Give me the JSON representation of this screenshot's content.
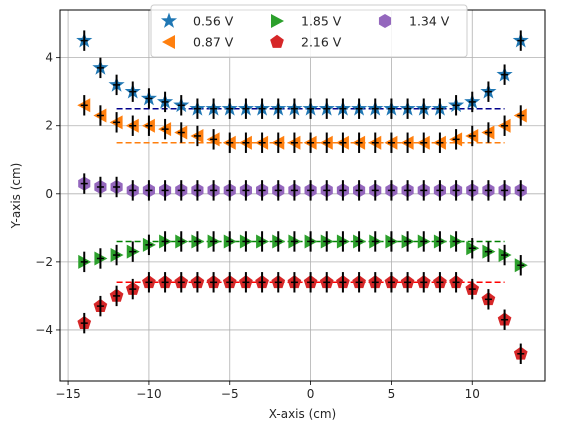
{
  "chart_data": {
    "type": "scatter",
    "title": "",
    "xlabel": "X-axis (cm)",
    "ylabel": "Y-axis (cm)",
    "xlim": [
      -15.5,
      14.5
    ],
    "ylim": [
      -5.5,
      5.4
    ],
    "xticks": [
      -15,
      -10,
      -5,
      0,
      5,
      10
    ],
    "yticks": [
      -4,
      -2,
      0,
      2,
      4
    ],
    "grid": true,
    "legend": {
      "placement": "top-center",
      "columns": 3
    },
    "x": [
      -14,
      -13,
      -12,
      -11,
      -10,
      -9,
      -8,
      -7,
      -6,
      -5,
      -4,
      -3,
      -2,
      -1,
      0,
      1,
      2,
      3,
      4,
      5,
      6,
      7,
      8,
      9,
      10,
      11,
      12,
      13
    ],
    "error_bar_color": "#000000",
    "series": [
      {
        "name": "0.56 V",
        "marker": "star",
        "color": "#1f77b4",
        "y": [
          4.5,
          3.7,
          3.2,
          3.0,
          2.8,
          2.7,
          2.6,
          2.5,
          2.5,
          2.5,
          2.5,
          2.5,
          2.5,
          2.5,
          2.5,
          2.5,
          2.5,
          2.5,
          2.5,
          2.5,
          2.5,
          2.5,
          2.5,
          2.6,
          2.7,
          3.0,
          3.5,
          4.5
        ],
        "yerr": 0.3,
        "reference_line": {
          "y": 2.5,
          "x_range": [
            -12,
            12
          ],
          "color": "#00008b"
        }
      },
      {
        "name": "0.87 V",
        "marker": "triangle-left",
        "color": "#ff7f0e",
        "y": [
          2.6,
          2.3,
          2.1,
          2.0,
          2.0,
          1.9,
          1.8,
          1.7,
          1.6,
          1.5,
          1.5,
          1.5,
          1.5,
          1.5,
          1.5,
          1.5,
          1.5,
          1.5,
          1.5,
          1.5,
          1.5,
          1.5,
          1.5,
          1.6,
          1.7,
          1.8,
          2.0,
          2.3
        ],
        "yerr": 0.3,
        "reference_line": {
          "y": 1.5,
          "x_range": [
            -12,
            12
          ],
          "color": "#ff7f0e"
        }
      },
      {
        "name": "1.34 V",
        "marker": "hexagon",
        "color": "#9467bd",
        "y": [
          0.3,
          0.2,
          0.2,
          0.1,
          0.1,
          0.1,
          0.1,
          0.1,
          0.1,
          0.1,
          0.1,
          0.1,
          0.1,
          0.1,
          0.1,
          0.1,
          0.1,
          0.1,
          0.1,
          0.1,
          0.1,
          0.1,
          0.1,
          0.1,
          0.1,
          0.1,
          0.1,
          0.1
        ],
        "yerr": 0.3,
        "reference_line": null
      },
      {
        "name": "1.85 V",
        "marker": "triangle-right",
        "color": "#2ca02c",
        "y": [
          -2.0,
          -1.9,
          -1.8,
          -1.7,
          -1.5,
          -1.4,
          -1.4,
          -1.4,
          -1.4,
          -1.4,
          -1.4,
          -1.4,
          -1.4,
          -1.4,
          -1.4,
          -1.4,
          -1.4,
          -1.4,
          -1.4,
          -1.4,
          -1.4,
          -1.4,
          -1.4,
          -1.4,
          -1.6,
          -1.7,
          -1.8,
          -2.1
        ],
        "yerr": 0.3,
        "reference_line": {
          "y": -1.4,
          "x_range": [
            -12,
            12
          ],
          "color": "#008000"
        }
      },
      {
        "name": "2.16 V",
        "marker": "pentagon",
        "color": "#d62728",
        "y": [
          -3.8,
          -3.3,
          -3.0,
          -2.8,
          -2.6,
          -2.6,
          -2.6,
          -2.6,
          -2.6,
          -2.6,
          -2.6,
          -2.6,
          -2.6,
          -2.6,
          -2.6,
          -2.6,
          -2.6,
          -2.6,
          -2.6,
          -2.6,
          -2.6,
          -2.6,
          -2.6,
          -2.6,
          -2.8,
          -3.1,
          -3.7,
          -4.7
        ],
        "yerr": 0.3,
        "reference_line": {
          "y": -2.6,
          "x_range": [
            -12,
            12
          ],
          "color": "#ff0000"
        }
      }
    ],
    "legend_order": [
      "0.56 V",
      "0.87 V",
      "1.85 V",
      "2.16 V",
      "1.34 V"
    ]
  }
}
